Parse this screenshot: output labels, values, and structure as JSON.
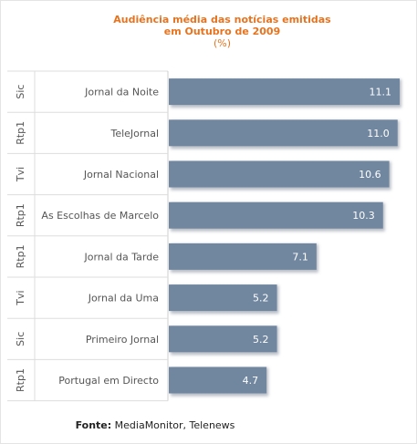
{
  "chart_data": {
    "type": "bar",
    "orientation": "horizontal",
    "title": "Audiência média das notícias emitidas",
    "subtitle": "em Outubro de 2009",
    "unit_label": "(%)",
    "categories": [
      "Jornal da Noite",
      "TeleJornal",
      "Jornal Nacional",
      "As Escolhas de Marcelo",
      "Jornal da Tarde",
      "Jornal da Uma",
      "Primeiro Jornal",
      "Portugal em Directo"
    ],
    "groups": [
      "Sic",
      "Rtp1",
      "Tvi",
      "Rtp1",
      "Rtp1",
      "Tvi",
      "Sic",
      "Rtp1"
    ],
    "values": [
      11.1,
      11.0,
      10.6,
      10.3,
      7.1,
      5.2,
      5.2,
      4.7
    ],
    "value_labels": [
      "11.1",
      "11.0",
      "10.6",
      "10.3",
      "7.1",
      "5.2",
      "5.2",
      "4.7"
    ],
    "xlim": [
      0,
      11.1
    ],
    "colors": {
      "bar": "#71869f",
      "bar_shadow": "#b9bec6",
      "title": "#e8731e"
    }
  },
  "footer": {
    "label": "Fonte:",
    "text": " MediaMonitor, Telenews"
  }
}
